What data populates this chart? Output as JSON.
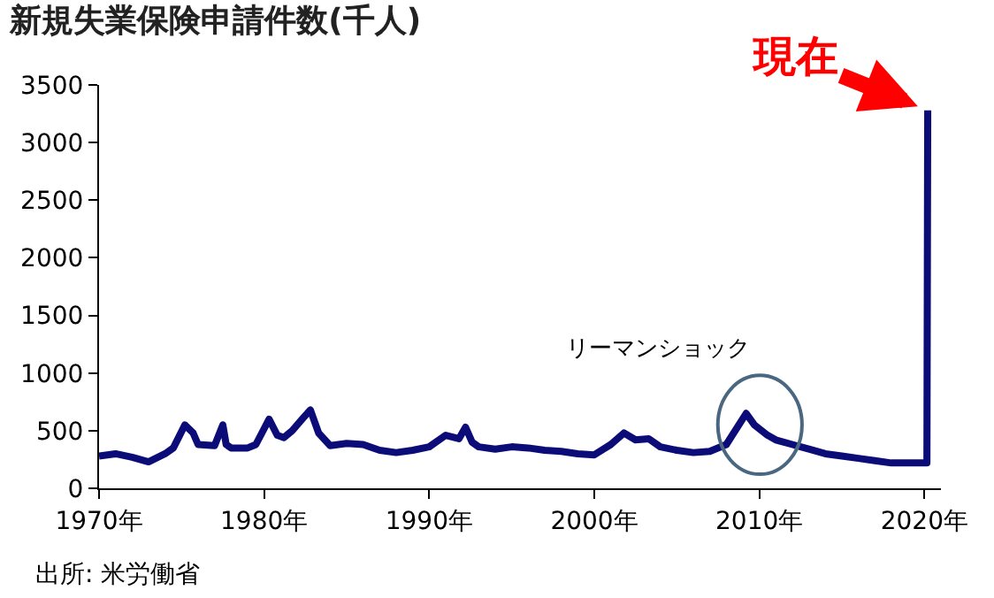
{
  "chart_data": {
    "type": "line",
    "title": "新規失業保険申請件数(千人)",
    "x": [
      1970,
      1971,
      1972,
      1973,
      1974,
      1974.5,
      1975.2,
      1975.7,
      1976,
      1977,
      1977.5,
      1977.7,
      1978,
      1979,
      1979.5,
      1980.3,
      1980.8,
      1981.2,
      1981.7,
      1982.3,
      1982.8,
      1983.3,
      1984,
      1985,
      1986,
      1987,
      1988,
      1989,
      1990,
      1991,
      1991.8,
      1992.2,
      1992.6,
      1993,
      1994,
      1995,
      1996,
      1997,
      1998,
      1999,
      2000,
      2001,
      2001.8,
      2002.5,
      2003.3,
      2004,
      2005,
      2006,
      2007,
      2008,
      2009.2,
      2009.7,
      2010.5,
      2011,
      2012,
      2013,
      2014,
      2015,
      2016,
      2017,
      2018,
      2019,
      2020.15,
      2020.2
    ],
    "series": [
      {
        "color": "#0c0c78",
        "values": [
          280,
          300,
          270,
          230,
          300,
          350,
          550,
          480,
          380,
          370,
          550,
          380,
          350,
          350,
          380,
          600,
          460,
          440,
          500,
          600,
          680,
          480,
          370,
          390,
          380,
          330,
          310,
          330,
          360,
          460,
          430,
          530,
          400,
          360,
          340,
          360,
          350,
          330,
          320,
          300,
          290,
          380,
          480,
          420,
          430,
          360,
          330,
          310,
          320,
          380,
          650,
          550,
          460,
          420,
          380,
          340,
          300,
          280,
          260,
          240,
          220,
          220,
          220,
          3280
        ]
      }
    ],
    "xlim": [
      1970,
      2021
    ],
    "xticks": [
      {
        "value": 1970,
        "label": "1970年"
      },
      {
        "value": 1980,
        "label": "1980年"
      },
      {
        "value": 1990,
        "label": "1990年"
      },
      {
        "value": 2000,
        "label": "2000年"
      },
      {
        "value": 2010,
        "label": "2010年"
      },
      {
        "value": 2020,
        "label": "2020年"
      }
    ],
    "ylim": [
      0,
      3500
    ],
    "yticks": [
      0,
      500,
      1000,
      1500,
      2000,
      2500,
      3000,
      3500
    ],
    "marker": "none",
    "line_style": "solid",
    "annotations": [
      {
        "text": "現在",
        "x": 2020.2,
        "y": 3280
      },
      "リーマンショック",
      "出所: 米労働省"
    ]
  }
}
